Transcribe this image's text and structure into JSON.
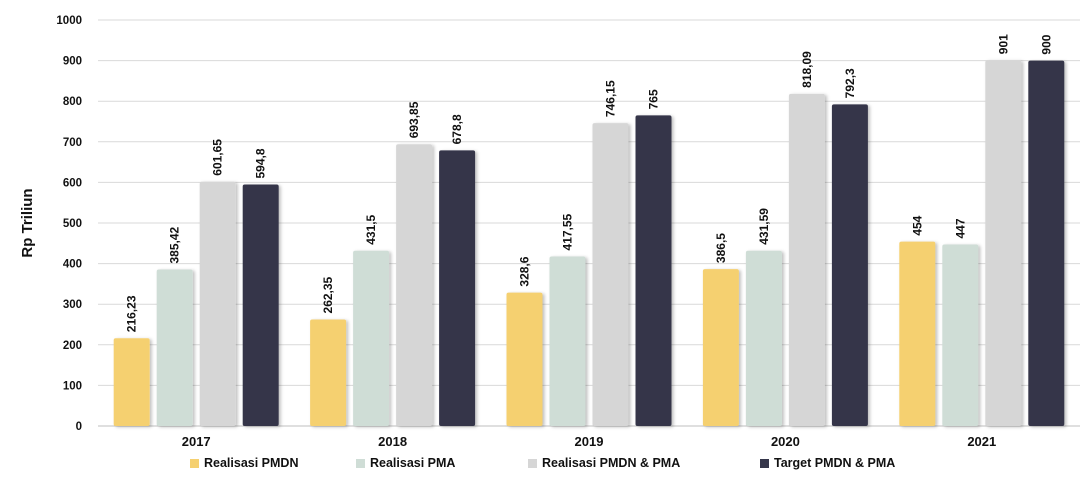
{
  "chart_data": {
    "type": "bar",
    "ylabel": "Rp Triliun",
    "xlabel": "",
    "title": "",
    "ylim": [
      0,
      1000
    ],
    "yticks": [
      0,
      100,
      200,
      300,
      400,
      500,
      600,
      700,
      800,
      900,
      1000
    ],
    "grid": true,
    "legend_position": "bottom",
    "categories": [
      "2017",
      "2018",
      "2019",
      "2020",
      "2021"
    ],
    "series": [
      {
        "name": "Realisasi PMDN",
        "color": "#F5D070",
        "values": [
          216.23,
          262.35,
          328.6,
          386.5,
          454
        ],
        "labels": [
          "216,23",
          "262,35",
          "328,6",
          "386,5",
          "454"
        ]
      },
      {
        "name": "Realisasi PMA",
        "color": "#CFDDD6",
        "values": [
          385.42,
          431.5,
          417.55,
          431.59,
          447
        ],
        "labels": [
          "385,42",
          "431,5",
          "417,55",
          "431,59",
          "447"
        ]
      },
      {
        "name": "Realisasi PMDN & PMA",
        "color": "#D6D6D6",
        "values": [
          601.65,
          693.85,
          746.15,
          818.09,
          901
        ],
        "labels": [
          "601,65",
          "693,85",
          "746,15",
          "818,09",
          "901"
        ]
      },
      {
        "name": "Target PMDN & PMA",
        "color": "#35364A",
        "values": [
          594.8,
          678.8,
          765,
          792.3,
          900
        ],
        "labels": [
          "594,8",
          "678,8",
          "765",
          "792,3",
          "900"
        ]
      }
    ]
  }
}
